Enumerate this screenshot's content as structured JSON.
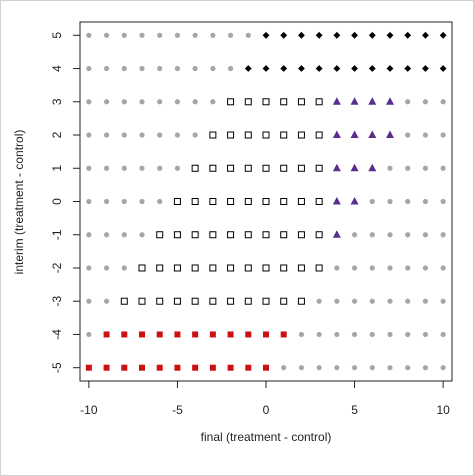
{
  "chart_data": {
    "type": "scatter",
    "xlabel": "final (treatment - control)",
    "ylabel": "interim (treatment - control)",
    "xlim": [
      -10.5,
      10.5
    ],
    "ylim": [
      -5.4,
      5.4
    ],
    "xticks": [
      -10,
      -5,
      0,
      5,
      10
    ],
    "yticks": [
      -5,
      -4,
      -3,
      -2,
      -1,
      0,
      1,
      2,
      3,
      4,
      5
    ],
    "series": [
      {
        "marker": "dot",
        "color": "#a6a6a6",
        "x": [
          -10,
          -9,
          -8,
          -7,
          -6,
          -5,
          -4,
          -3,
          -2,
          -1,
          -10,
          -9,
          -8,
          -7,
          -6,
          -5,
          -4,
          -3,
          -2,
          -10,
          -9,
          -8,
          -7,
          -6,
          -5,
          -4,
          -3,
          8,
          9,
          10,
          -10,
          -9,
          -8,
          -7,
          -6,
          -5,
          -4,
          8,
          9,
          10,
          -10,
          -9,
          -8,
          -7,
          -6,
          -5,
          7,
          8,
          9,
          10,
          -10,
          -9,
          -8,
          -7,
          -6,
          6,
          7,
          8,
          9,
          10,
          -10,
          -9,
          -8,
          -7,
          5,
          6,
          7,
          8,
          9,
          10,
          -10,
          -9,
          -8,
          4,
          5,
          6,
          7,
          8,
          9,
          10,
          -10,
          -9,
          3,
          4,
          5,
          6,
          7,
          8,
          9,
          10,
          -10,
          2,
          3,
          4,
          5,
          6,
          7,
          8,
          9,
          10,
          1,
          2,
          3,
          4,
          5,
          6,
          7,
          8,
          9,
          10
        ],
        "y": [
          5,
          5,
          5,
          5,
          5,
          5,
          5,
          5,
          5,
          5,
          4,
          4,
          4,
          4,
          4,
          4,
          4,
          4,
          4,
          3,
          3,
          3,
          3,
          3,
          3,
          3,
          3,
          3,
          3,
          3,
          2,
          2,
          2,
          2,
          2,
          2,
          2,
          2,
          2,
          2,
          1,
          1,
          1,
          1,
          1,
          1,
          1,
          1,
          1,
          1,
          0,
          0,
          0,
          0,
          0,
          0,
          0,
          0,
          0,
          0,
          -1,
          -1,
          -1,
          -1,
          -1,
          -1,
          -1,
          -1,
          -1,
          -1,
          -2,
          -2,
          -2,
          -2,
          -2,
          -2,
          -2,
          -2,
          -2,
          -2,
          -3,
          -3,
          -3,
          -3,
          -3,
          -3,
          -3,
          -3,
          -3,
          -3,
          -4,
          -4,
          -4,
          -4,
          -4,
          -4,
          -4,
          -4,
          -4,
          -4,
          -5,
          -5,
          -5,
          -5,
          -5,
          -5,
          -5,
          -5,
          -5,
          -5
        ]
      },
      {
        "marker": "diamond",
        "color": "#000000",
        "x": [
          0,
          1,
          2,
          3,
          4,
          5,
          6,
          7,
          8,
          9,
          10,
          -1,
          0,
          1,
          2,
          3,
          4,
          5,
          6,
          7,
          8,
          9,
          10
        ],
        "y": [
          5,
          5,
          5,
          5,
          5,
          5,
          5,
          5,
          5,
          5,
          5,
          4,
          4,
          4,
          4,
          4,
          4,
          4,
          4,
          4,
          4,
          4,
          4
        ]
      },
      {
        "marker": "open-square",
        "color": "#000000",
        "x": [
          -2,
          -1,
          0,
          1,
          2,
          3,
          -3,
          -2,
          -1,
          0,
          1,
          2,
          3,
          -4,
          -3,
          -2,
          -1,
          0,
          1,
          2,
          3,
          -5,
          -4,
          -3,
          -2,
          -1,
          0,
          1,
          2,
          3,
          -6,
          -5,
          -4,
          -3,
          -2,
          -1,
          0,
          1,
          2,
          3,
          -7,
          -6,
          -5,
          -4,
          -3,
          -2,
          -1,
          0,
          1,
          2,
          3,
          -8,
          -7,
          -6,
          -5,
          -4,
          -3,
          -2,
          -1,
          0,
          1,
          2
        ],
        "y": [
          3,
          3,
          3,
          3,
          3,
          3,
          2,
          2,
          2,
          2,
          2,
          2,
          2,
          1,
          1,
          1,
          1,
          1,
          1,
          1,
          1,
          0,
          0,
          0,
          0,
          0,
          0,
          0,
          0,
          0,
          -1,
          -1,
          -1,
          -1,
          -1,
          -1,
          -1,
          -1,
          -1,
          -1,
          -2,
          -2,
          -2,
          -2,
          -2,
          -2,
          -2,
          -2,
          -2,
          -2,
          -2,
          -3,
          -3,
          -3,
          -3,
          -3,
          -3,
          -3,
          -3,
          -3,
          -3,
          -3
        ]
      },
      {
        "marker": "triangle",
        "color": "#5a2d8c",
        "x": [
          4,
          5,
          6,
          7,
          4,
          5,
          6,
          7,
          4,
          5,
          6,
          4,
          5,
          4
        ],
        "y": [
          3,
          3,
          3,
          3,
          2,
          2,
          2,
          2,
          1,
          1,
          1,
          0,
          0,
          -1
        ]
      },
      {
        "marker": "square",
        "color": "#cc1111",
        "x": [
          -9,
          -8,
          -7,
          -6,
          -5,
          -4,
          -3,
          -2,
          -1,
          0,
          1,
          -10,
          -9,
          -8,
          -7,
          -6,
          -5,
          -4,
          -3,
          -2,
          -1,
          0
        ],
        "y": [
          -4,
          -4,
          -4,
          -4,
          -4,
          -4,
          -4,
          -4,
          -4,
          -4,
          -4,
          -5,
          -5,
          -5,
          -5,
          -5,
          -5,
          -5,
          -5,
          -5,
          -5,
          -5
        ]
      }
    ]
  }
}
